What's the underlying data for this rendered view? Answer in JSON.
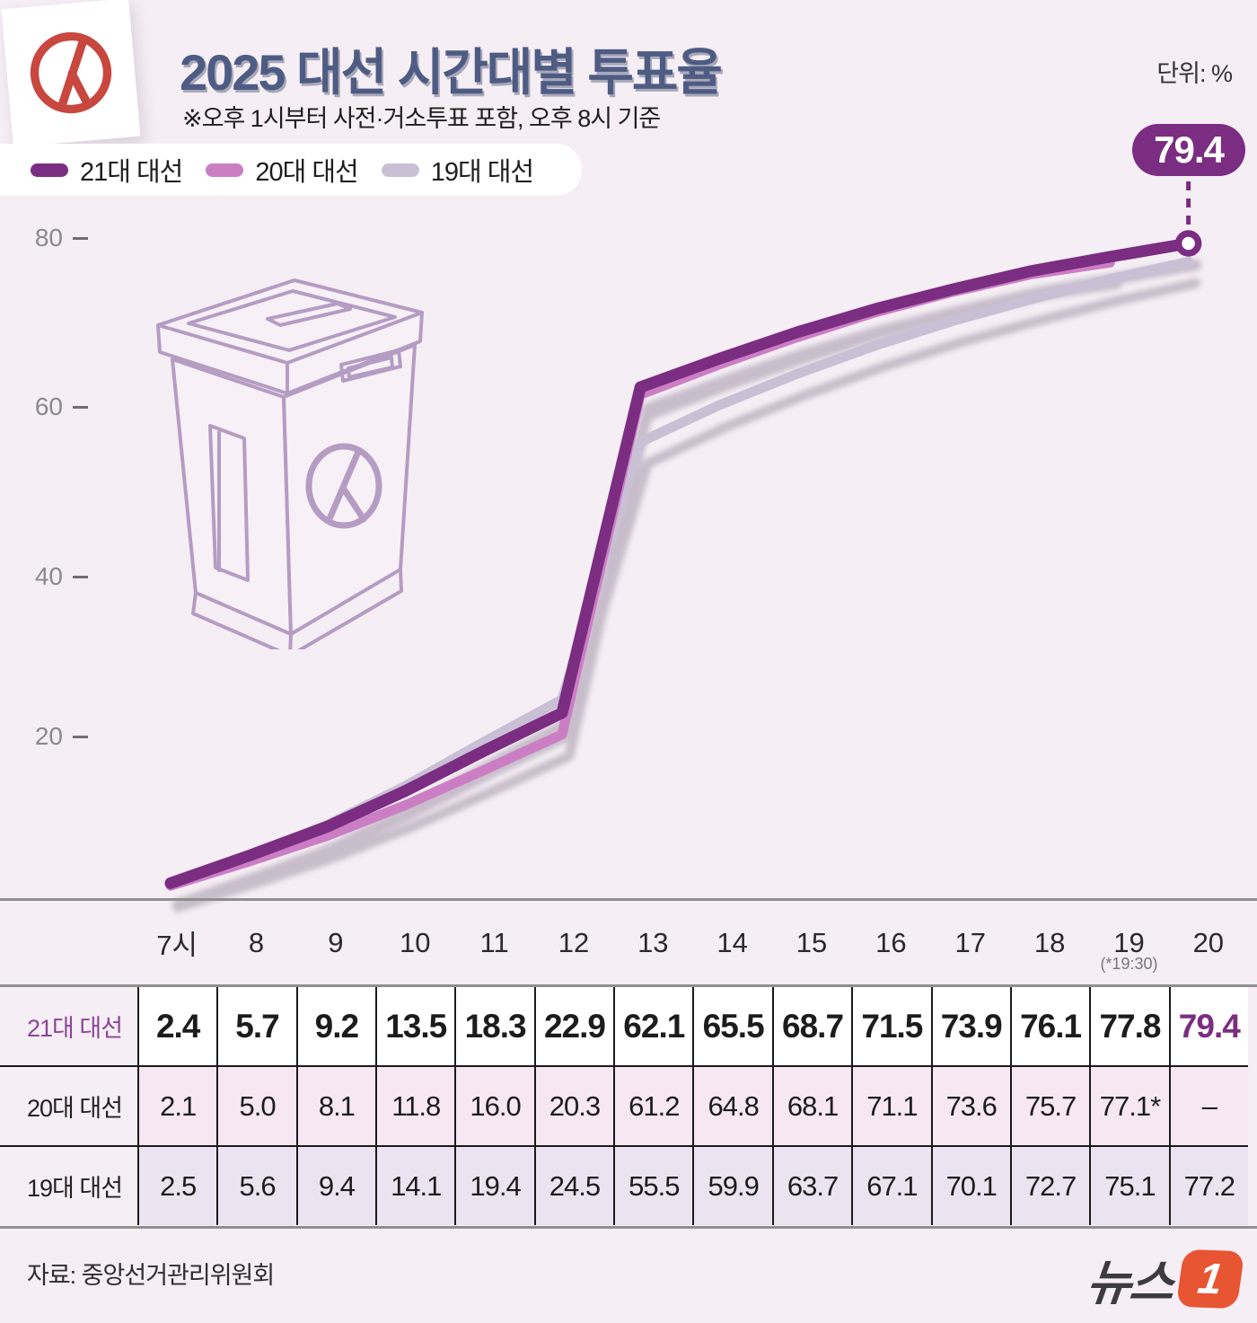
{
  "header": {
    "title": "2025 대선 시간대별 투표율",
    "subtitle": "※오후 1시부터 사전·거소투표 포함, 오후 8시 기준",
    "unit_label": "단위: %",
    "colors": {
      "title": "#4e5c84",
      "stamp_red": "#c8473f"
    }
  },
  "legend": {
    "items": [
      {
        "label": "21대 대선",
        "color": "#7b2d82"
      },
      {
        "label": "20대 대선",
        "color": "#cb7ec3"
      },
      {
        "label": "19대 대선",
        "color": "#c9c0d6"
      }
    ]
  },
  "callout": {
    "value": "79.4",
    "color": "#7b2d82"
  },
  "chart_data": {
    "type": "line",
    "x": [
      "7시",
      "8",
      "9",
      "10",
      "11",
      "12",
      "13",
      "14",
      "15",
      "16",
      "17",
      "18",
      "19",
      "20"
    ],
    "x_note": {
      "index": 12,
      "text": "(*19:30)"
    },
    "title": "2025 대선 시간대별 투표율",
    "ylabel": "%",
    "yticks": [
      20,
      40,
      60,
      80
    ],
    "ylim": [
      0,
      85
    ],
    "grid": false,
    "legend_position": "top-left",
    "series": [
      {
        "name": "21대 대선",
        "color": "#7b2d82",
        "values": [
          2.4,
          5.7,
          9.2,
          13.5,
          18.3,
          22.9,
          62.1,
          65.5,
          68.7,
          71.5,
          73.9,
          76.1,
          77.8,
          79.4
        ]
      },
      {
        "name": "20대 대선",
        "color": "#cb7ec3",
        "values": [
          2.1,
          5.0,
          8.1,
          11.8,
          16.0,
          20.3,
          61.2,
          64.8,
          68.1,
          71.1,
          73.6,
          75.7,
          77.1,
          null
        ]
      },
      {
        "name": "19대 대선",
        "color": "#c9c0d6",
        "values": [
          2.5,
          5.6,
          9.4,
          14.1,
          19.4,
          24.5,
          55.5,
          59.9,
          63.7,
          67.1,
          70.1,
          72.7,
          75.1,
          77.2
        ]
      }
    ],
    "annotation": {
      "label": "79.4",
      "series": "21대 대선",
      "at_x": "20"
    }
  },
  "table": {
    "time_header": {
      "cells": [
        "7시",
        "8",
        "9",
        "10",
        "11",
        "12",
        "13",
        "14",
        "15",
        "16",
        "17",
        "18",
        "19",
        "20"
      ],
      "sub_note": {
        "col": 12,
        "text": "(*19:30)"
      }
    },
    "rows": [
      {
        "label": "21대 대선",
        "highlight_last": true,
        "values": [
          "2.4",
          "5.7",
          "9.2",
          "13.5",
          "18.3",
          "22.9",
          "62.1",
          "65.5",
          "68.7",
          "71.5",
          "73.9",
          "76.1",
          "77.8",
          "79.4"
        ]
      },
      {
        "label": "20대 대선",
        "highlight_last": false,
        "values": [
          "2.1",
          "5.0",
          "8.1",
          "11.8",
          "16.0",
          "20.3",
          "61.2",
          "64.8",
          "68.1",
          "71.1",
          "73.6",
          "75.7",
          "77.1*",
          "–"
        ]
      },
      {
        "label": "19대 대선",
        "highlight_last": false,
        "values": [
          "2.5",
          "5.6",
          "9.4",
          "14.1",
          "19.4",
          "24.5",
          "55.5",
          "59.9",
          "63.7",
          "67.1",
          "70.1",
          "72.7",
          "75.1",
          "77.2"
        ]
      }
    ]
  },
  "footer": {
    "source": "자료: 중앙선거관리위원회",
    "logo_text": "뉴스",
    "logo_number": "1",
    "logo_color": "#e85532"
  }
}
